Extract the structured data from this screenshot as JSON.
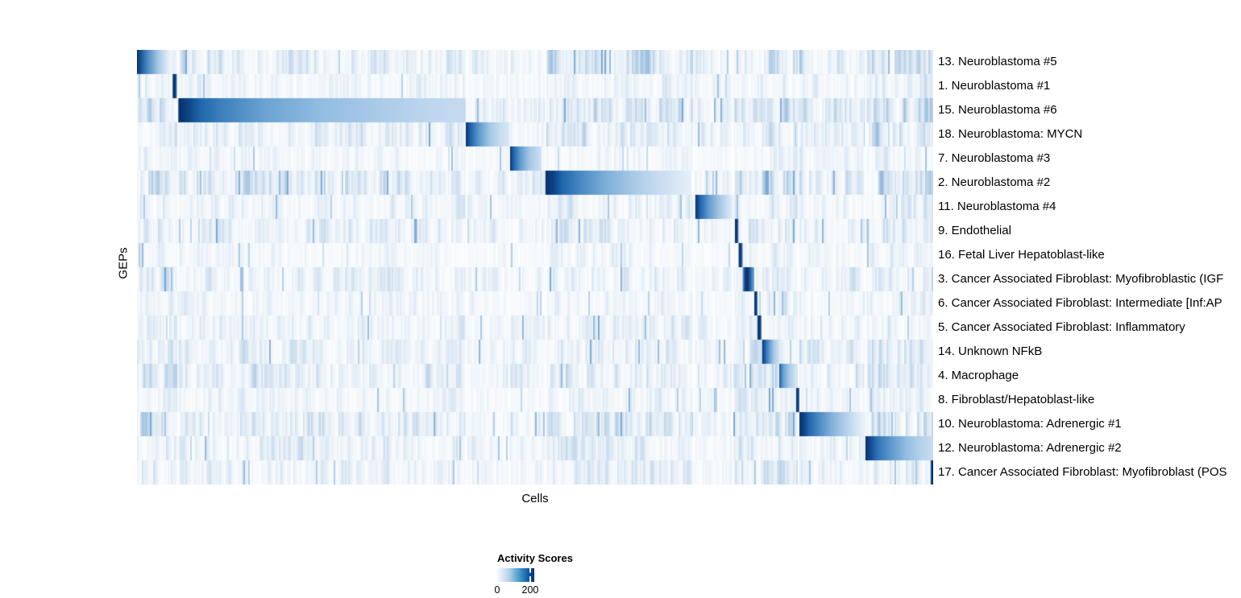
{
  "chart_data": {
    "type": "heatmap",
    "title": "",
    "xlabel": "Cells",
    "ylabel": "GEPs",
    "grid": false,
    "x_axis_ticks": "none (thousands of single-cell columns)",
    "value_scale": {
      "min": 0,
      "max": 225,
      "shown_tick_values": [
        0,
        200
      ]
    },
    "colorbar": {
      "title": "Activity Scores",
      "position": "bottom-center",
      "gradient": [
        "#f7fbff",
        "#deebf7",
        "#c6dbef",
        "#9ecae1",
        "#6baed6",
        "#4292c6",
        "#2171b5",
        "#08519c",
        "#08306b"
      ],
      "ticks": [
        {
          "label": "0",
          "frac": 0.0
        },
        {
          "label": "200",
          "frac": 0.89
        }
      ]
    },
    "column_group_boundaries": [
      0.051,
      0.413,
      0.467,
      0.512,
      0.698,
      0.747,
      0.83,
      0.914
    ],
    "x_bands": [
      {
        "x0": 0.0,
        "x1": 0.052,
        "f": 1.0
      },
      {
        "x0": 0.052,
        "x1": 0.413,
        "f": 0.75
      },
      {
        "x0": 0.413,
        "x1": 0.513,
        "f": 0.55
      },
      {
        "x0": 0.513,
        "x1": 0.7,
        "f": 0.9
      },
      {
        "x0": 0.7,
        "x1": 0.75,
        "f": 0.55
      },
      {
        "x0": 0.75,
        "x1": 0.832,
        "f": 1.0
      },
      {
        "x0": 0.832,
        "x1": 0.915,
        "f": 0.7
      },
      {
        "x0": 0.915,
        "x1": 1.001,
        "f": 1.05
      }
    ],
    "rows": [
      {
        "label": "13. Neuroblastoma #5",
        "stripe": 0.8,
        "block": {
          "x0": 0.0,
          "x1": 0.0445,
          "peak": 220,
          "stops": [
            [
              0,
              "#08306b"
            ],
            [
              0.12,
              "#1b5a9e"
            ],
            [
              0.3,
              "#4e8cc4"
            ],
            [
              0.6,
              "#a5c8e5"
            ],
            [
              0.85,
              "#ddeaf6"
            ],
            [
              1,
              "#f2f7fc"
            ]
          ]
        }
      },
      {
        "label": "1. Neuroblastoma #1",
        "stripe": 0.45,
        "block": {
          "x0": 0.0448,
          "x1": 0.0499,
          "peak": 220,
          "stops": [
            [
              0,
              "#123f85"
            ],
            [
              0.5,
              "#08306b"
            ],
            [
              1,
              "#2a6db3"
            ]
          ]
        }
      },
      {
        "label": "15. Neuroblastoma #6",
        "stripe": 0.85,
        "block": {
          "x0": 0.0519,
          "x1": 0.413,
          "peak": 220,
          "stops": [
            [
              0,
              "#08306b"
            ],
            [
              0.03,
              "#0d4183"
            ],
            [
              0.08,
              "#2268ae"
            ],
            [
              0.15,
              "#3d80bc"
            ],
            [
              0.3,
              "#6ba3d2"
            ],
            [
              0.5,
              "#93bde2"
            ],
            [
              0.7,
              "#abcbe9"
            ],
            [
              0.87,
              "#bdd6ee"
            ],
            [
              1,
              "#c6dbf0"
            ]
          ]
        }
      },
      {
        "label": "18. Neuroblastoma: MYCN",
        "stripe": 0.75,
        "block": {
          "x0": 0.413,
          "x1": 0.4676,
          "peak": 220,
          "stops": [
            [
              0,
              "#08306b"
            ],
            [
              0.1,
              "#1d61ab"
            ],
            [
              0.3,
              "#5e9ace"
            ],
            [
              0.55,
              "#a3c7e4"
            ],
            [
              0.8,
              "#c9ddf1"
            ],
            [
              1,
              "#d8e7f5"
            ]
          ]
        }
      },
      {
        "label": "7. Neuroblastoma #3",
        "stripe": 0.35,
        "block": {
          "x0": 0.4686,
          "x1": 0.508,
          "peak": 220,
          "stops": [
            [
              0,
              "#08306b"
            ],
            [
              0.1,
              "#1d61ab"
            ],
            [
              0.32,
              "#5e9ace"
            ],
            [
              0.6,
              "#a3c7e4"
            ],
            [
              1,
              "#cfe0f2"
            ]
          ]
        }
      },
      {
        "label": "2. Neuroblastoma #2",
        "stripe": 0.9,
        "block": {
          "x0": 0.513,
          "x1": 0.696,
          "peak": 220,
          "stops": [
            [
              0,
              "#08306b"
            ],
            [
              0.05,
              "#0d4183"
            ],
            [
              0.12,
              "#2268ae"
            ],
            [
              0.25,
              "#4d8bc4"
            ],
            [
              0.42,
              "#7fb0da"
            ],
            [
              0.6,
              "#a8cae7"
            ],
            [
              0.78,
              "#c9dcf1"
            ],
            [
              1,
              "#e6f0f9"
            ]
          ]
        }
      },
      {
        "label": "11. Neuroblastoma #4",
        "stripe": 0.5,
        "block": {
          "x0": 0.7013,
          "x1": 0.748,
          "peak": 220,
          "stops": [
            [
              0,
              "#08306b"
            ],
            [
              0.12,
              "#1d61ab"
            ],
            [
              0.35,
              "#6099cd"
            ],
            [
              0.65,
              "#a5c8e5"
            ],
            [
              1,
              "#e2edf8"
            ]
          ]
        }
      },
      {
        "label": "9. Endothelial",
        "stripe": 0.65,
        "block": {
          "x0": 0.751,
          "x1": 0.7553,
          "peak": 220,
          "stops": [
            [
              0,
              "#0a3a7d"
            ],
            [
              0.5,
              "#08306b"
            ],
            [
              1,
              "#3b7ab8"
            ]
          ]
        }
      },
      {
        "label": "16. Fetal Liver Hepatoblast-like",
        "stripe": 0.35,
        "block": {
          "x0": 0.7557,
          "x1": 0.7603,
          "peak": 220,
          "stops": [
            [
              0,
              "#0a3a7d"
            ],
            [
              0.5,
              "#08306b"
            ],
            [
              1,
              "#3b7ab8"
            ]
          ]
        }
      },
      {
        "label": "3. Cancer Associated Fibroblast: Myofibroblastic (IGF",
        "stripe": 0.6,
        "block": {
          "x0": 0.7605,
          "x1": 0.7753,
          "peak": 220,
          "stops": [
            [
              0,
              "#8ab8dd"
            ],
            [
              0.2,
              "#0d4183"
            ],
            [
              0.45,
              "#08306b"
            ],
            [
              0.7,
              "#2a6db3"
            ],
            [
              1,
              "#74a9d4"
            ]
          ]
        }
      },
      {
        "label": "6. Cancer Associated Fibroblast: Intermediate [Inf:AP",
        "stripe": 0.4,
        "block": {
          "x0": 0.7753,
          "x1": 0.7794,
          "peak": 220,
          "stops": [
            [
              0,
              "#123f85"
            ],
            [
              0.5,
              "#08306b"
            ],
            [
              1,
              "#4485bf"
            ]
          ]
        }
      },
      {
        "label": "5. Cancer Associated Fibroblast: Inflammatory",
        "stripe": 0.5,
        "block": {
          "x0": 0.7794,
          "x1": 0.7844,
          "peak": 220,
          "stops": [
            [
              0,
              "#123f85"
            ],
            [
              0.5,
              "#08306b"
            ],
            [
              1,
              "#4485bf"
            ]
          ]
        }
      },
      {
        "label": "14. Unknown NFkB",
        "stripe": 0.65,
        "block": {
          "x0": 0.7854,
          "x1": 0.8067,
          "peak": 220,
          "stops": [
            [
              0,
              "#08306b"
            ],
            [
              0.15,
              "#1d61ab"
            ],
            [
              0.4,
              "#6099cd"
            ],
            [
              0.7,
              "#abcbe8"
            ],
            [
              1,
              "#d3e3f3"
            ]
          ]
        }
      },
      {
        "label": "4. Macrophage",
        "stripe": 0.7,
        "block": {
          "x0": 0.8067,
          "x1": 0.8279,
          "peak": 180,
          "stops": [
            [
              0,
              "#1b5fa8"
            ],
            [
              0.25,
              "#6ba3d2"
            ],
            [
              0.6,
              "#a9cbe7"
            ],
            [
              1,
              "#d5e5f4"
            ]
          ]
        }
      },
      {
        "label": "8. Fibroblast/Hepatoblast-like",
        "stripe": 0.45,
        "block": {
          "x0": 0.8279,
          "x1": 0.832,
          "peak": 220,
          "stops": [
            [
              0,
              "#123f85"
            ],
            [
              0.5,
              "#08306b"
            ],
            [
              1,
              "#4485bf"
            ]
          ]
        }
      },
      {
        "label": "10. Neuroblastoma: Adrenergic #1",
        "stripe": 0.8,
        "block": {
          "x0": 0.832,
          "x1": 0.9149,
          "peak": 220,
          "stops": [
            [
              0,
              "#08306b"
            ],
            [
              0.06,
              "#0d4183"
            ],
            [
              0.15,
              "#2268ae"
            ],
            [
              0.3,
              "#4d8bc4"
            ],
            [
              0.5,
              "#85b3dc"
            ],
            [
              0.7,
              "#b3d0ea"
            ],
            [
              0.88,
              "#d8e7f5"
            ],
            [
              1,
              "#eef4fb"
            ]
          ]
        }
      },
      {
        "label": "12. Neuroblastoma: Adrenergic #2",
        "stripe": 0.65,
        "block": {
          "x0": 0.9149,
          "x1": 1.0,
          "peak": 220,
          "stops": [
            [
              0,
              "#08306b"
            ],
            [
              0.07,
              "#14498e"
            ],
            [
              0.18,
              "#2e74b6"
            ],
            [
              0.38,
              "#6099cd"
            ],
            [
              0.6,
              "#93bde2"
            ],
            [
              0.8,
              "#b3d0ea"
            ],
            [
              1,
              "#c9ddf1"
            ]
          ]
        }
      },
      {
        "label": "17. Cancer Associated Fibroblast: Myofibroblast (POS",
        "stripe": 0.55,
        "block": {
          "x0": 0.9969,
          "x1": 1.0,
          "peak": 220,
          "stops": [
            [
              0,
              "#2a6db3"
            ],
            [
              0.5,
              "#08306b"
            ],
            [
              1,
              "#08306b"
            ]
          ]
        }
      }
    ]
  }
}
